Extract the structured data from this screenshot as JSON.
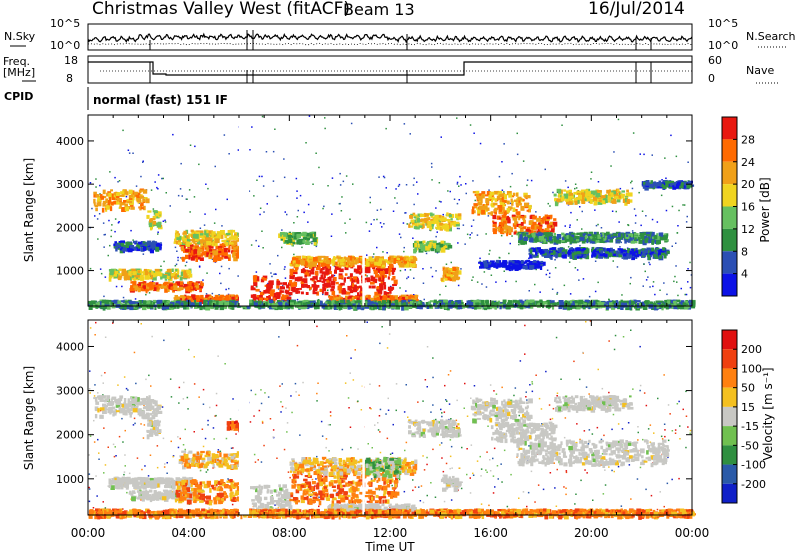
{
  "header": {
    "site": "Christmas Valley West (fitACF)",
    "beam": "Beam 13",
    "date": "16/Jul/2014"
  },
  "params": {
    "nsky_label": "N.Sky",
    "nsky_ticks": [
      "10^5",
      "10^0"
    ],
    "nsearch_label": "N.Search",
    "nsearch_ticks": [
      "10^5",
      "10^0"
    ],
    "freq_label_1": "Freq.",
    "freq_label_2": "[MHz]",
    "freq_ticks": [
      "18",
      "8"
    ],
    "nave_label": "Nave",
    "nave_ticks": [
      "60",
      "0"
    ],
    "cpid_label": "CPID",
    "cpid_value": "normal (fast) 151 IF"
  },
  "chart_data": [
    {
      "type": "heatmap",
      "name": "power",
      "ylabel": "Slant Range [km]",
      "xlabel": "Time UT",
      "xlim": [
        "00:00",
        "00:00"
      ],
      "x_ticks": [
        "00:00",
        "04:00",
        "08:00",
        "12:00",
        "16:00",
        "20:00",
        "00:00"
      ],
      "ylim": [
        180,
        4600
      ],
      "y_ticks": [
        1000,
        2000,
        3000,
        4000
      ],
      "colorbar": {
        "label": "Power [dB]",
        "ticks": [
          "4",
          "8",
          "12",
          "16",
          "20",
          "24",
          "28"
        ],
        "colors": [
          "#0c12e6",
          "#2b4fb4",
          "#2f9040",
          "#66c060",
          "#f0d420",
          "#f0a018",
          "#ff6a00",
          "#e81810"
        ]
      },
      "bands": [
        {
          "t0": 0.2,
          "t1": 2.3,
          "r0": 2450,
          "r1": 2900,
          "level": 5
        },
        {
          "t0": 2.3,
          "t1": 2.8,
          "r0": 2000,
          "r1": 2400,
          "level": 4
        },
        {
          "t0": 1.0,
          "t1": 2.8,
          "r0": 1500,
          "r1": 1700,
          "level": 1
        },
        {
          "t0": 0.8,
          "t1": 4.0,
          "r0": 850,
          "r1": 1050,
          "level": 4
        },
        {
          "t0": 1.6,
          "t1": 4.5,
          "r0": 580,
          "r1": 760,
          "level": 6
        },
        {
          "t0": 3.6,
          "t1": 6.0,
          "r0": 1300,
          "r1": 1650,
          "level": 6
        },
        {
          "t0": 3.4,
          "t1": 6.1,
          "r0": 1650,
          "r1": 1950,
          "level": 4
        },
        {
          "t0": 3.4,
          "t1": 6.1,
          "r0": 300,
          "r1": 450,
          "level": 6
        },
        {
          "t0": 6.4,
          "t1": 8.0,
          "r0": 250,
          "r1": 900,
          "level": 7
        },
        {
          "t0": 8.0,
          "t1": 12.2,
          "r0": 500,
          "r1": 1150,
          "level": 7
        },
        {
          "t0": 8.0,
          "t1": 13.0,
          "r0": 1150,
          "r1": 1350,
          "level": 5
        },
        {
          "t0": 9.5,
          "t1": 13.0,
          "r0": 280,
          "r1": 450,
          "level": 6
        },
        {
          "t0": 7.5,
          "t1": 9.0,
          "r0": 1650,
          "r1": 1900,
          "level": 3
        },
        {
          "t0": 12.7,
          "t1": 14.7,
          "r0": 2000,
          "r1": 2350,
          "level": 4
        },
        {
          "t0": 12.9,
          "t1": 14.3,
          "r0": 1500,
          "r1": 1700,
          "level": 3
        },
        {
          "t0": 14.0,
          "t1": 14.7,
          "r0": 800,
          "r1": 1100,
          "level": 5
        },
        {
          "t0": 15.2,
          "t1": 17.5,
          "r0": 2350,
          "r1": 2850,
          "level": 5
        },
        {
          "t0": 16.0,
          "t1": 18.5,
          "r0": 1900,
          "r1": 2300,
          "level": 6
        },
        {
          "t0": 18.5,
          "t1": 21.5,
          "r0": 2600,
          "r1": 2900,
          "level": 4
        },
        {
          "t0": 17.0,
          "t1": 23.0,
          "r0": 1700,
          "r1": 1900,
          "level": 2
        },
        {
          "t0": 17.5,
          "t1": 23.0,
          "r0": 1350,
          "r1": 1550,
          "level": 1
        },
        {
          "t0": 22.0,
          "t1": 24.0,
          "r0": 2950,
          "r1": 3100,
          "level": 1
        },
        {
          "t0": 15.5,
          "t1": 18.0,
          "r0": 1100,
          "r1": 1250,
          "level": 0
        },
        {
          "t0": 0.0,
          "t1": 24.0,
          "r0": 180,
          "r1": 330,
          "level": 2
        }
      ]
    },
    {
      "type": "heatmap",
      "name": "velocity",
      "ylabel": "Slant Range [km]",
      "xlabel": "Time UT",
      "xlim": [
        "00:00",
        "00:00"
      ],
      "x_ticks": [
        "00:00",
        "04:00",
        "08:00",
        "12:00",
        "16:00",
        "20:00",
        "00:00"
      ],
      "ylim": [
        180,
        4600
      ],
      "y_ticks": [
        1000,
        2000,
        3000,
        4000
      ],
      "colorbar": {
        "label": "Velocity [m s⁻¹]",
        "ticks": [
          "200",
          "100",
          "50",
          "15",
          "-15",
          "-50",
          "-100",
          "-200"
        ],
        "colors": [
          "#1020c8",
          "#2a5aa8",
          "#2f8f40",
          "#70c050",
          "#c8c8c4",
          "#f4c020",
          "#ff8010",
          "#f04010",
          "#e01010"
        ]
      },
      "bands": [
        {
          "t0": 0.2,
          "t1": 2.8,
          "r0": 2450,
          "r1": 2900,
          "level": 4
        },
        {
          "t0": 2.3,
          "t1": 2.8,
          "r0": 2000,
          "r1": 2400,
          "level": 4
        },
        {
          "t0": 0.8,
          "t1": 4.0,
          "r0": 850,
          "r1": 1050,
          "level": 4
        },
        {
          "t0": 1.6,
          "t1": 4.5,
          "r0": 580,
          "r1": 760,
          "level": 4
        },
        {
          "t0": 3.6,
          "t1": 6.0,
          "r0": 1300,
          "r1": 1650,
          "level": 5
        },
        {
          "t0": 3.4,
          "t1": 6.1,
          "r0": 500,
          "r1": 1000,
          "level": 6
        },
        {
          "t0": 5.5,
          "t1": 6.0,
          "r0": 2150,
          "r1": 2350,
          "level": 7
        },
        {
          "t0": 6.4,
          "t1": 8.0,
          "r0": 250,
          "r1": 900,
          "level": 4
        },
        {
          "t0": 8.0,
          "t1": 12.2,
          "r0": 500,
          "r1": 1150,
          "level": 6
        },
        {
          "t0": 8.0,
          "t1": 13.0,
          "r0": 1150,
          "r1": 1500,
          "level": 5
        },
        {
          "t0": 11.0,
          "t1": 12.4,
          "r0": 1100,
          "r1": 1500,
          "level": 3
        },
        {
          "t0": 9.5,
          "t1": 13.0,
          "r0": 280,
          "r1": 450,
          "level": 4
        },
        {
          "t0": 12.7,
          "t1": 14.7,
          "r0": 2000,
          "r1": 2350,
          "level": 4
        },
        {
          "t0": 14.0,
          "t1": 14.7,
          "r0": 800,
          "r1": 1100,
          "level": 4
        },
        {
          "t0": 15.2,
          "t1": 17.5,
          "r0": 2350,
          "r1": 2850,
          "level": 4
        },
        {
          "t0": 16.0,
          "t1": 18.5,
          "r0": 1900,
          "r1": 2300,
          "level": 4
        },
        {
          "t0": 18.5,
          "t1": 21.5,
          "r0": 2600,
          "r1": 2900,
          "level": 4
        },
        {
          "t0": 17.0,
          "t1": 23.0,
          "r0": 1350,
          "r1": 1900,
          "level": 4
        },
        {
          "t0": 0.0,
          "t1": 24.0,
          "r0": 180,
          "r1": 330,
          "level": 6
        }
      ]
    }
  ]
}
